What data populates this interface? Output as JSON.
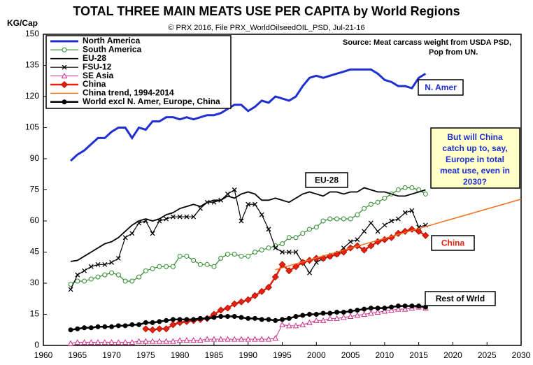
{
  "chart_data": {
    "type": "line",
    "title": "TOTAL THREE MAIN MEATS USE PER CAPITA by World Regions",
    "subtitle": "© PRX 2016, File PRX_WorldOilseedOIL_PSD, Jul-21-16",
    "y_label": "KG/Cap",
    "source": [
      "Source: Meat carcass weight from USDA PSD,",
      "Pop from UN."
    ],
    "x": [
      1964,
      1965,
      1966,
      1967,
      1968,
      1969,
      1970,
      1971,
      1972,
      1973,
      1974,
      1975,
      1976,
      1977,
      1978,
      1979,
      1980,
      1981,
      1982,
      1983,
      1984,
      1985,
      1986,
      1987,
      1988,
      1989,
      1990,
      1991,
      1992,
      1993,
      1994,
      1995,
      1996,
      1997,
      1998,
      1999,
      2000,
      2001,
      2002,
      2003,
      2004,
      2005,
      2006,
      2007,
      2008,
      2009,
      2010,
      2011,
      2012,
      2013,
      2014,
      2015,
      2016
    ],
    "series": [
      {
        "name": "North America",
        "color": "#1f2fd0",
        "marker": "none",
        "values": [
          89,
          92,
          94,
          97,
          100,
          100,
          103,
          105,
          105,
          100,
          105,
          104,
          108,
          108,
          110,
          110,
          109,
          110,
          109,
          110,
          111,
          111,
          112,
          114,
          116,
          116,
          113,
          115,
          118,
          117,
          120,
          119,
          118,
          120,
          125,
          129,
          130,
          129,
          130,
          131,
          132,
          133,
          133,
          133,
          133,
          131,
          128,
          127,
          125,
          125,
          124,
          129,
          131
        ]
      },
      {
        "name": "South America",
        "color": "#2e8b2e",
        "marker": "circle-open",
        "values": [
          29.5,
          31,
          31,
          32,
          33,
          34,
          35,
          34,
          31,
          31,
          33,
          36,
          37,
          38,
          38,
          38,
          43,
          43,
          41,
          39,
          39,
          38,
          42,
          44,
          44,
          43,
          43,
          45,
          46,
          47,
          48,
          49,
          52,
          52,
          54,
          56,
          57,
          60,
          61,
          61,
          61,
          61,
          63,
          66,
          68,
          69,
          71,
          73,
          75,
          76,
          76,
          75,
          73
        ]
      },
      {
        "name": "EU-28",
        "color": "#000000",
        "marker": "none",
        "values": [
          40.5,
          41,
          43,
          45,
          47,
          49,
          50,
          52,
          55,
          58,
          60,
          61,
          60,
          61,
          63,
          64,
          66,
          67,
          68,
          67,
          69,
          70,
          70,
          72,
          71,
          73,
          74,
          73,
          70,
          70,
          71,
          70,
          69,
          71,
          73,
          74,
          73,
          72,
          74,
          74,
          73,
          74,
          74,
          76,
          75,
          74,
          74,
          73,
          72,
          72,
          73,
          74,
          75
        ]
      },
      {
        "name": "FSU-12",
        "color": "#000000",
        "marker": "x",
        "values": [
          27,
          34,
          36,
          38,
          39,
          39,
          40,
          42,
          52,
          54,
          59,
          60,
          54,
          60,
          61,
          62,
          62,
          62,
          62,
          66,
          69,
          69,
          70,
          73,
          75,
          60,
          68,
          68,
          63,
          56,
          47,
          45,
          45,
          45,
          40,
          35,
          40,
          42,
          43,
          44,
          47,
          50,
          51,
          55,
          59,
          55,
          58,
          60,
          61,
          64,
          65,
          57,
          58
        ]
      },
      {
        "name": "SE Asia",
        "color": "#d0308a",
        "marker": "triangle-open",
        "values": [
          1,
          1.5,
          1.5,
          1.5,
          1.5,
          1.5,
          1.5,
          1.5,
          1.5,
          1.5,
          2,
          2,
          2,
          2,
          2,
          2,
          2.5,
          2.5,
          2.5,
          2.5,
          3,
          3,
          3,
          3,
          3,
          3,
          3,
          3,
          3,
          3,
          3.5,
          10,
          9.5,
          9.5,
          10,
          11,
          12,
          12,
          13,
          13,
          13.5,
          14,
          14.5,
          15,
          15.5,
          16,
          16.5,
          17,
          17.5,
          17.5,
          18,
          18.5,
          18
        ]
      },
      {
        "name": "China",
        "color": "#e8200c",
        "marker": "diamond",
        "x": [
          1975,
          1976,
          1977,
          1978,
          1979,
          1980,
          1981,
          1982,
          1983,
          1984,
          1985,
          1986,
          1987,
          1988,
          1989,
          1990,
          1991,
          1992,
          1993,
          1994,
          1995,
          1996,
          1997,
          1998,
          1999,
          2000,
          2001,
          2002,
          2003,
          2004,
          2005,
          2006,
          2007,
          2008,
          2009,
          2010,
          2011,
          2012,
          2013,
          2014,
          2015,
          2016
        ],
        "values": [
          8,
          7.5,
          8,
          8,
          10,
          11,
          11.5,
          12,
          12.5,
          13,
          15,
          17,
          18,
          20,
          21,
          22,
          24,
          26,
          28,
          33,
          39,
          36,
          38,
          40,
          41,
          42,
          42,
          43,
          44,
          45,
          47,
          48,
          46,
          48,
          50,
          51,
          52,
          54,
          55,
          56,
          55,
          53
        ]
      },
      {
        "name": "China trend, 1994-2014",
        "color": "#f07020",
        "marker": "none",
        "x": [
          1994,
          2030
        ],
        "values": [
          36.5,
          70.5
        ]
      },
      {
        "name": "World excl N. Amer, Europe, China",
        "color": "#000000",
        "marker": "circle",
        "values": [
          7.5,
          8,
          8.5,
          8.5,
          9,
          9,
          9,
          9.5,
          9.5,
          10,
          10,
          11,
          11,
          11.5,
          12,
          12.5,
          12.5,
          12.5,
          12.5,
          13,
          13,
          13.5,
          14,
          14,
          14,
          13.5,
          13,
          13,
          12.5,
          12.5,
          12,
          12.5,
          13,
          14,
          14.5,
          15,
          15,
          15.5,
          15.5,
          16,
          16,
          16.5,
          17,
          17.5,
          18,
          18,
          18,
          18.5,
          19,
          19,
          19,
          19,
          18.5
        ]
      }
    ],
    "annotations": [
      {
        "text": "N. Amer",
        "color": "#1f2fd0"
      },
      {
        "text": "EU-28",
        "color": "#000000"
      },
      {
        "text": "China",
        "color": "#e8200c"
      },
      {
        "text": "Rest of Wrld",
        "color": "#000000"
      }
    ],
    "question": [
      "But will China",
      "catch up to, say,",
      "Europe in total",
      "meat use, even in",
      "2030?"
    ],
    "xlim": [
      1960,
      2030
    ],
    "xticks": [
      1960,
      1965,
      1970,
      1975,
      1980,
      1985,
      1990,
      1995,
      2000,
      2005,
      2010,
      2015,
      2020,
      2025,
      2030
    ],
    "ylim": [
      0,
      150
    ],
    "yticks": [
      0,
      15,
      30,
      45,
      60,
      75,
      90,
      105,
      120,
      135,
      150
    ],
    "grid": false
  }
}
